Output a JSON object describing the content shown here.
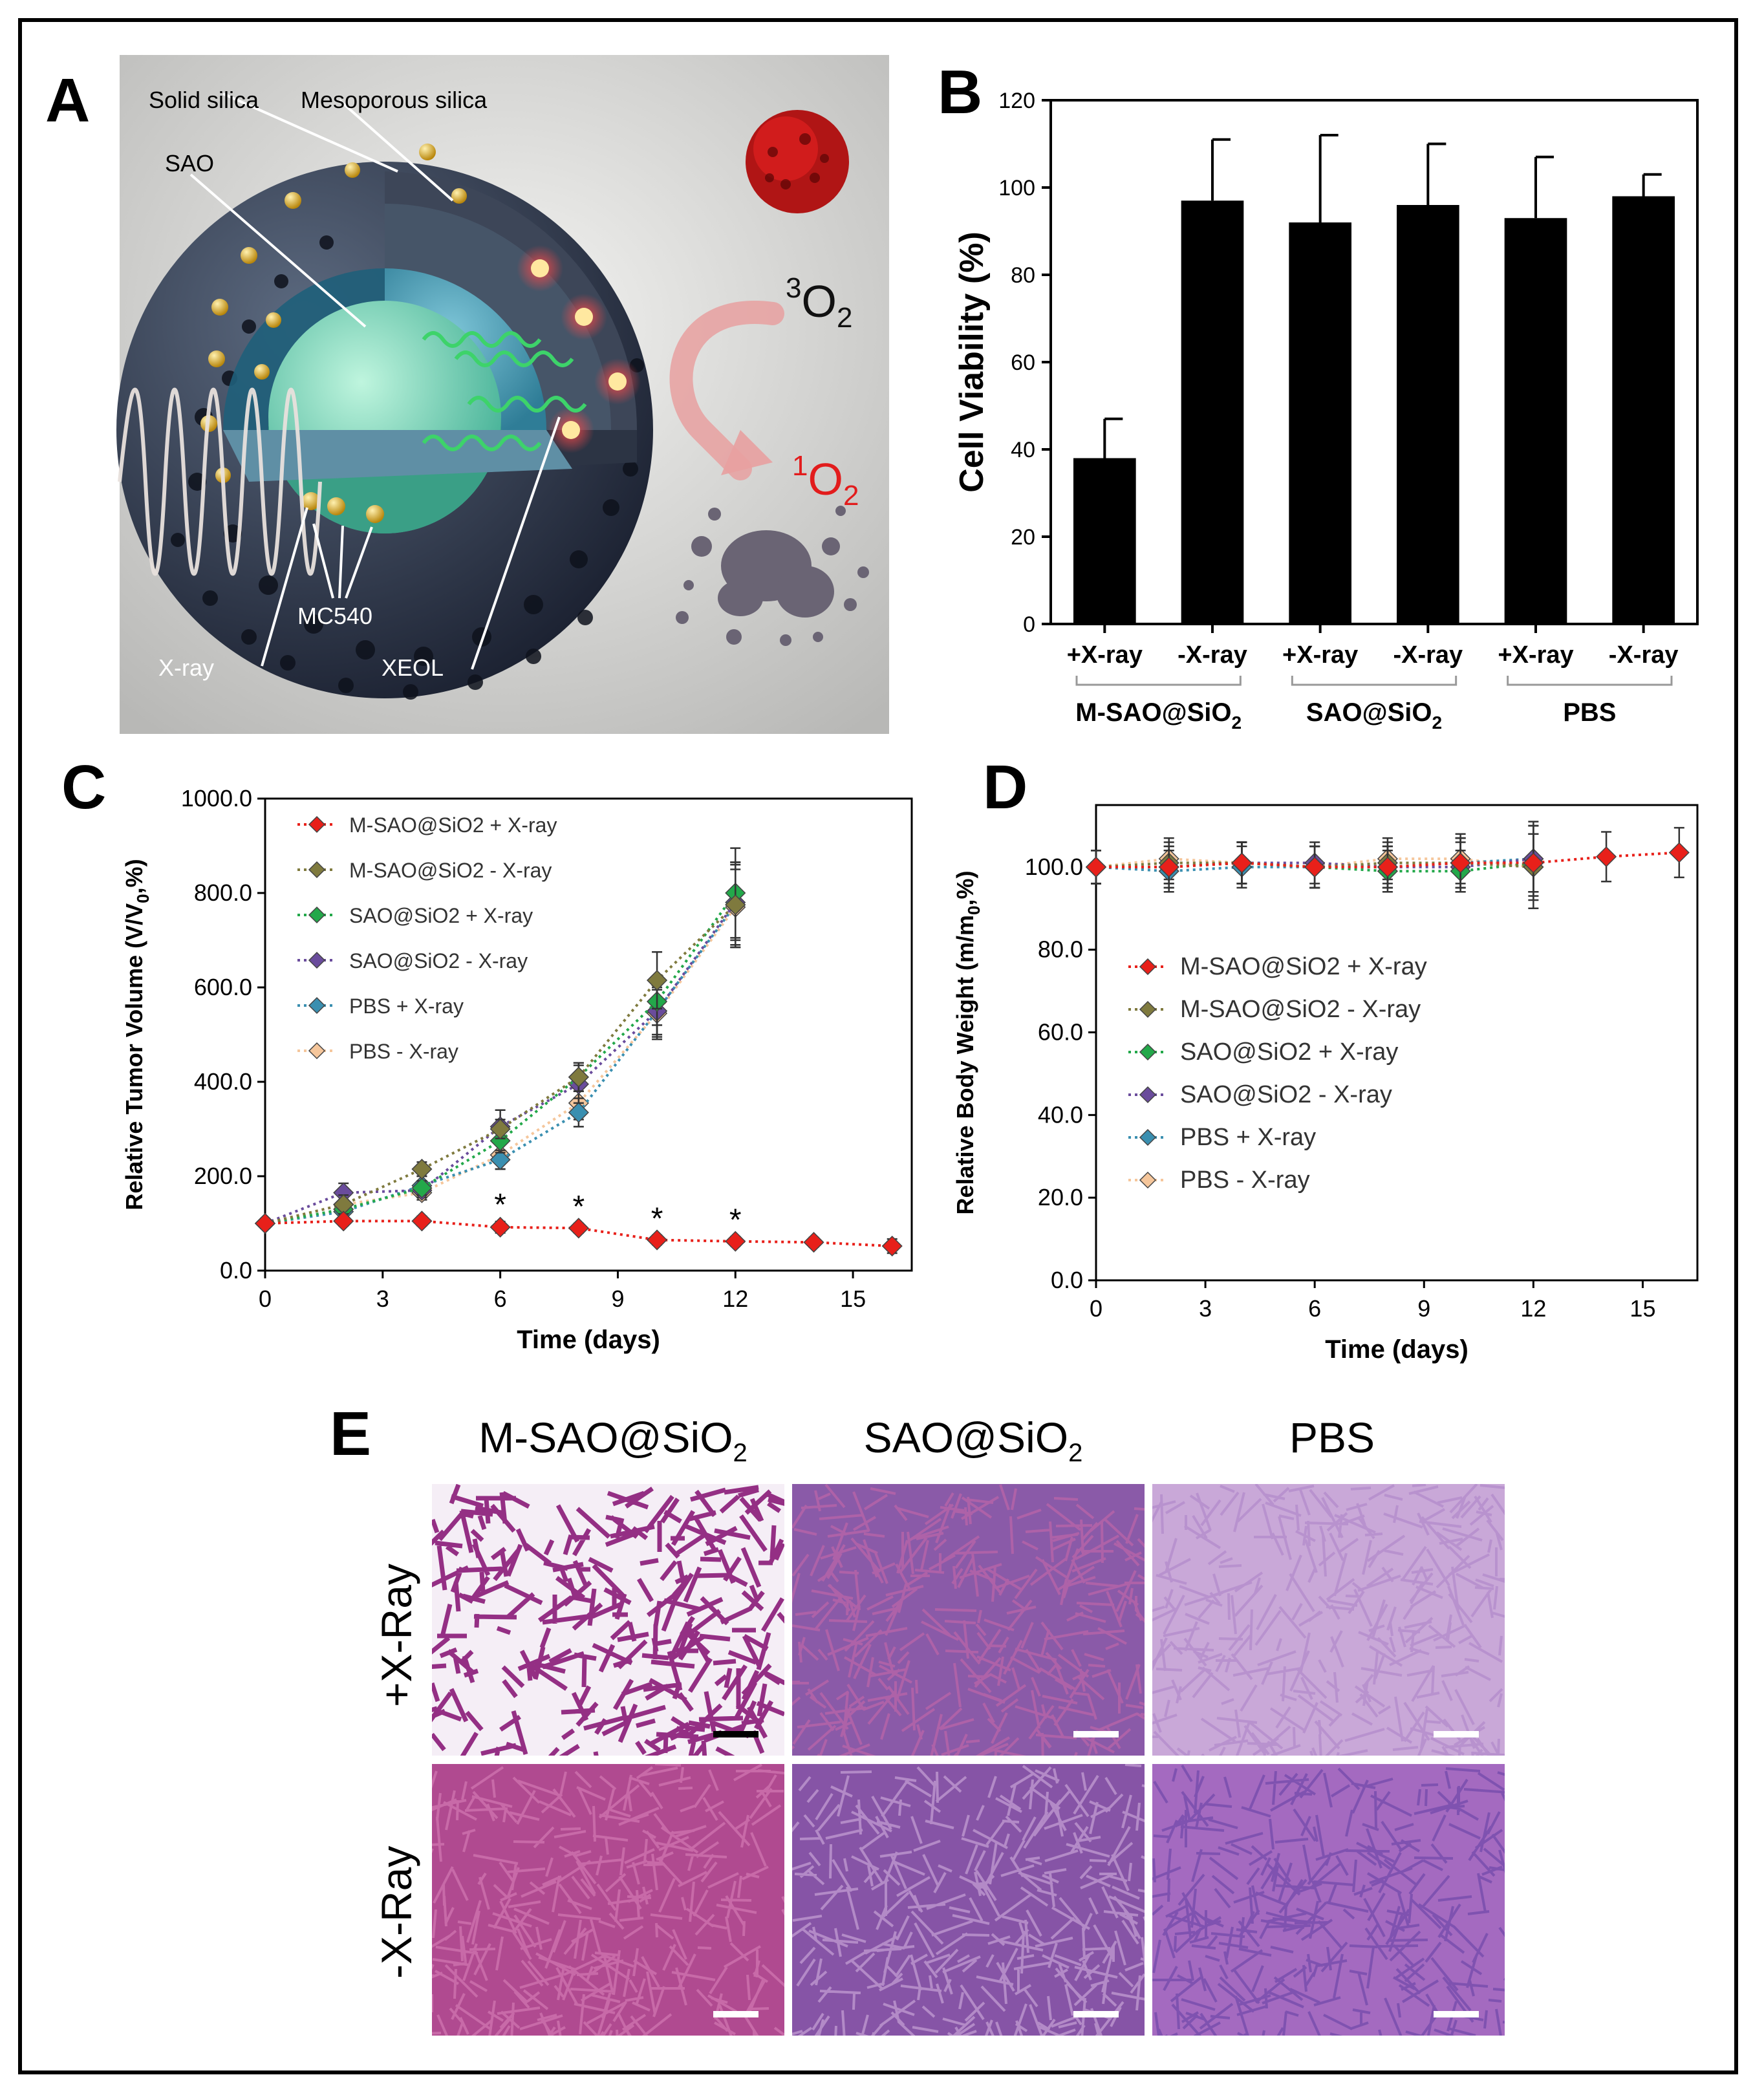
{
  "panels": {
    "A": {
      "letter": "A",
      "labels": {
        "solid_silica": "Solid silica",
        "mesoporous_silica": "Mesoporous silica",
        "sao": "SAO",
        "mc540": "MC540",
        "xray": "X-ray",
        "xeol": "XEOL",
        "triplet_o2": "O",
        "triplet_o2_sup": "3",
        "triplet_o2_sub": "2",
        "singlet_o2": "O",
        "singlet_o2_sup": "1",
        "singlet_o2_sub": "2"
      }
    },
    "B": {
      "letter": "B"
    },
    "C": {
      "letter": "C"
    },
    "D": {
      "letter": "D"
    },
    "E": {
      "letter": "E",
      "columns": [
        "M-SAO@SiO",
        "SAO@SiO",
        "PBS"
      ],
      "column_subscripts": [
        "2",
        "2",
        ""
      ],
      "rows": [
        "+X-Ray",
        "-X-Ray"
      ]
    }
  },
  "chart_data": [
    {
      "id": "B",
      "type": "bar",
      "ylabel": "Cell Viability (%)",
      "ylim": [
        0,
        120
      ],
      "yticks": [
        0,
        20,
        40,
        60,
        80,
        100,
        120
      ],
      "categories": [
        "+X-ray",
        "-X-ray",
        "+X-ray",
        "-X-ray",
        "+X-ray",
        "-X-ray"
      ],
      "values": [
        38,
        97,
        92,
        96,
        93,
        98
      ],
      "errors": [
        9,
        14,
        20,
        14,
        14,
        5
      ],
      "groups": [
        {
          "label": "M-SAO@SiO",
          "sub": "2"
        },
        {
          "label": "SAO@SiO",
          "sub": "2"
        },
        {
          "label": "PBS",
          "sub": ""
        }
      ],
      "bar_color": "#000000"
    },
    {
      "id": "C",
      "type": "line",
      "xlabel": "Time (days)",
      "ylabel_parts": [
        "Relative Tumor Volume (V/V",
        "0",
        ",%)"
      ],
      "xlim": [
        0,
        16.5
      ],
      "ylim": [
        0,
        1000
      ],
      "xticks": [
        0,
        3,
        6,
        9,
        12,
        15
      ],
      "yticks": [
        "0.0",
        "200.0",
        "400.0",
        "600.0",
        "800.0",
        "1000.0"
      ],
      "legend_position": "top-left",
      "annotations": {
        "text": "*",
        "x": [
          6,
          8,
          10,
          12
        ]
      },
      "series": [
        {
          "name": "M-SAO@SiO2 + X-ray",
          "color": "#e8201a",
          "x": [
            0,
            2,
            4,
            6,
            8,
            10,
            12,
            14,
            16
          ],
          "y": [
            100,
            105,
            105,
            92,
            90,
            65,
            62,
            60,
            52
          ],
          "err": [
            10,
            10,
            10,
            12,
            10,
            10,
            10,
            10,
            15
          ]
        },
        {
          "name": "M-SAO@SiO2 - X-ray",
          "color": "#7f7a3e",
          "x": [
            0,
            2,
            4,
            6,
            8,
            10,
            12
          ],
          "y": [
            100,
            140,
            215,
            300,
            410,
            615,
            775
          ],
          "err": [
            10,
            20,
            15,
            20,
            30,
            60,
            90
          ]
        },
        {
          "name": "SAO@SiO2 + X-ray",
          "color": "#23a84a",
          "x": [
            0,
            2,
            4,
            6,
            8,
            10,
            12
          ],
          "y": [
            100,
            130,
            175,
            275,
            410,
            570,
            800
          ],
          "err": [
            10,
            20,
            15,
            25,
            30,
            50,
            95
          ]
        },
        {
          "name": "SAO@SiO2 - X-ray",
          "color": "#6a4c9c",
          "x": [
            0,
            2,
            4,
            6,
            8,
            10,
            12
          ],
          "y": [
            100,
            165,
            170,
            305,
            395,
            550,
            780
          ],
          "err": [
            10,
            20,
            15,
            35,
            40,
            50,
            80
          ]
        },
        {
          "name": "PBS + X-ray",
          "color": "#3a8fb0",
          "x": [
            0,
            2,
            4,
            6,
            8,
            10,
            12
          ],
          "y": [
            100,
            125,
            180,
            235,
            335,
            550,
            775
          ],
          "err": [
            10,
            15,
            20,
            20,
            30,
            60,
            90
          ]
        },
        {
          "name": "PBS - X-ray",
          "color": "#f5c69b",
          "x": [
            0,
            2,
            4,
            6,
            8,
            10,
            12
          ],
          "y": [
            100,
            140,
            165,
            245,
            355,
            545,
            770
          ],
          "err": [
            10,
            20,
            15,
            30,
            35,
            50,
            80
          ]
        }
      ]
    },
    {
      "id": "D",
      "type": "line",
      "xlabel": "Time (days)",
      "ylabel_parts": [
        "Relative Body Weight (m/m",
        "0",
        ",%)"
      ],
      "xlim": [
        0,
        16.5
      ],
      "ylim": [
        0,
        115
      ],
      "xticks": [
        0,
        3,
        6,
        9,
        12,
        15
      ],
      "yticks": [
        "0.0",
        "20.0",
        "40.0",
        "60.0",
        "80.0",
        "100.0"
      ],
      "legend_position": "center-left",
      "series": [
        {
          "name": "M-SAO@SiO2 + X-ray",
          "color": "#e8201a",
          "x": [
            0,
            2,
            4,
            6,
            8,
            10,
            12,
            14,
            16
          ],
          "y": [
            100,
            100,
            101,
            100,
            100,
            101,
            101,
            102.5,
            103.5
          ],
          "err": [
            4,
            4,
            5,
            5,
            5,
            6,
            7,
            6,
            6
          ]
        },
        {
          "name": "M-SAO@SiO2 - X-ray",
          "color": "#7f7a3e",
          "x": [
            0,
            2,
            4,
            6,
            8,
            10,
            12
          ],
          "y": [
            100,
            101,
            101,
            100,
            101,
            101,
            100
          ],
          "err": [
            4,
            5,
            5,
            5,
            5,
            6,
            8
          ]
        },
        {
          "name": "SAO@SiO2 + X-ray",
          "color": "#23a84a",
          "x": [
            0,
            2,
            4,
            6,
            8,
            10,
            12
          ],
          "y": [
            100,
            100,
            101,
            100,
            99,
            99,
            101
          ],
          "err": [
            4,
            5,
            5,
            5,
            5,
            5,
            7
          ]
        },
        {
          "name": "SAO@SiO2 - X-ray",
          "color": "#6a4c9c",
          "x": [
            0,
            2,
            4,
            6,
            8,
            10,
            12
          ],
          "y": [
            100,
            100,
            101,
            101,
            100,
            100,
            102
          ],
          "err": [
            4,
            5,
            5,
            5,
            5,
            6,
            8
          ]
        },
        {
          "name": "PBS + X-ray",
          "color": "#3a8fb0",
          "x": [
            0,
            2,
            4,
            6,
            8,
            10,
            12
          ],
          "y": [
            100,
            99,
            100,
            100,
            100,
            101,
            102
          ],
          "err": [
            4,
            5,
            5,
            5,
            5,
            6,
            9
          ]
        },
        {
          "name": "PBS - X-ray",
          "color": "#f5c69b",
          "x": [
            0,
            2,
            4,
            6,
            8,
            10,
            12
          ],
          "y": [
            100,
            102,
            101,
            100,
            102,
            102,
            100
          ],
          "err": [
            4,
            5,
            5,
            5,
            5,
            6,
            10
          ]
        }
      ]
    }
  ]
}
